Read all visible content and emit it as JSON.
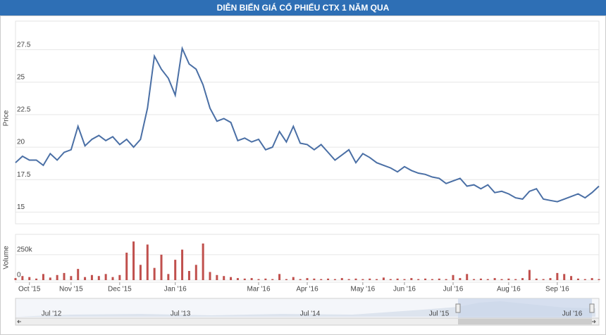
{
  "chart_data": [
    {
      "type": "line",
      "title": "DIỄN BIẾN GIÁ CỔ PHIẾU CTX 1 NĂM QUA",
      "y_label": "Price",
      "categories": [
        null,
        null,
        "Oct '15",
        null,
        null,
        null,
        null,
        null,
        "Nov '15",
        null,
        null,
        null,
        null,
        null,
        null,
        "Dec '15",
        null,
        null,
        null,
        null,
        null,
        null,
        null,
        "Jan '16",
        null,
        null,
        null,
        null,
        null,
        null,
        null,
        null,
        null,
        null,
        null,
        "Mar '16",
        null,
        null,
        null,
        null,
        null,
        null,
        "Apr '16",
        null,
        null,
        null,
        null,
        null,
        null,
        null,
        "May '16",
        null,
        null,
        null,
        null,
        null,
        "Jun '16",
        null,
        null,
        null,
        null,
        null,
        null,
        "Jul '16",
        null,
        null,
        null,
        null,
        null,
        null,
        null,
        "Aug '16",
        null,
        null,
        null,
        null,
        null,
        null,
        "Sep '16",
        null,
        null,
        null,
        null,
        null,
        null
      ],
      "series": [
        {
          "name": "Price",
          "color": "#4a6fa5",
          "values": [
            18.8,
            19.3,
            19.0,
            19.0,
            18.6,
            19.5,
            19.0,
            19.6,
            19.8,
            21.6,
            20.1,
            20.6,
            20.9,
            20.5,
            20.8,
            20.2,
            20.6,
            20.0,
            20.6,
            23.0,
            27.0,
            26.0,
            25.3,
            24.0,
            27.6,
            26.4,
            26.0,
            24.8,
            23.0,
            22.0,
            22.2,
            21.9,
            20.5,
            20.7,
            20.4,
            20.6,
            19.8,
            20.0,
            21.2,
            20.4,
            21.6,
            20.3,
            20.2,
            19.8,
            20.2,
            19.6,
            19.0,
            19.4,
            19.8,
            18.8,
            19.5,
            19.2,
            18.8,
            18.6,
            18.4,
            18.1,
            18.5,
            18.2,
            18.0,
            17.9,
            17.7,
            17.6,
            17.2,
            17.4,
            17.6,
            17.0,
            17.1,
            16.8,
            17.1,
            16.5,
            16.6,
            16.4,
            16.1,
            16.0,
            16.6,
            16.8,
            16.0,
            15.9,
            15.8,
            16.0,
            16.2,
            16.4,
            16.1,
            16.5,
            17.0
          ]
        }
      ],
      "ylim": [
        14.1,
        29.7
      ],
      "yticks": [
        15,
        17.5,
        20,
        22.5,
        25,
        27.5
      ],
      "grid": true
    },
    {
      "type": "bar",
      "y_label": "Volume",
      "color": "#c0504d",
      "values": [
        20000,
        40000,
        30000,
        15000,
        60000,
        25000,
        50000,
        70000,
        40000,
        110000,
        30000,
        50000,
        40000,
        60000,
        30000,
        50000,
        270000,
        380000,
        150000,
        350000,
        120000,
        250000,
        60000,
        200000,
        300000,
        90000,
        150000,
        360000,
        80000,
        50000,
        40000,
        30000,
        20000,
        15000,
        20000,
        10000,
        15000,
        10000,
        60000,
        10000,
        30000,
        10000,
        20000,
        15000,
        10000,
        15000,
        10000,
        20000,
        10000,
        15000,
        10000,
        15000,
        10000,
        25000,
        10000,
        15000,
        10000,
        20000,
        10000,
        15000,
        10000,
        15000,
        10000,
        50000,
        20000,
        60000,
        10000,
        15000,
        10000,
        20000,
        10000,
        15000,
        10000,
        20000,
        100000,
        15000,
        10000,
        20000,
        70000,
        60000,
        40000,
        15000,
        10000,
        20000,
        10000
      ],
      "ylim": [
        0,
        450000
      ],
      "yticks": [
        0,
        {
          "value": 250000,
          "label": "250k"
        }
      ],
      "grid": true
    },
    {
      "type": "navigator",
      "labels": [
        "Jul '12",
        "Jul '13",
        "Jul '14",
        "Jul '15",
        "Jul '16"
      ]
    }
  ]
}
